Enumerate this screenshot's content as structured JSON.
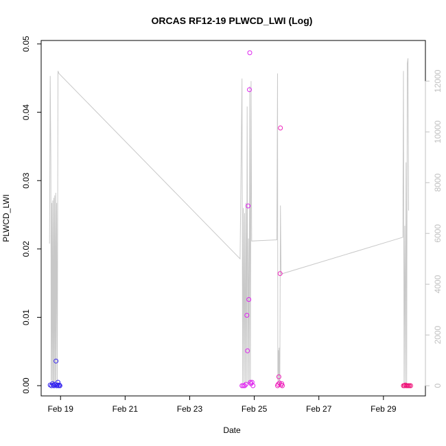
{
  "chart_data": {
    "type": "scatter",
    "title": "ORCAS RF12-19 PLWCD_LWI (Log)",
    "xlabel": "Date",
    "ylabel": "PLWCD_LWI",
    "x_ticks": [
      "Feb 19",
      "Feb 21",
      "Feb 23",
      "Feb 25",
      "Feb 27",
      "Feb 29"
    ],
    "x_tick_days": [
      19,
      21,
      23,
      25,
      27,
      29
    ],
    "xlim": [
      18.4,
      30.3
    ],
    "ylim": [
      -0.0015,
      0.0505
    ],
    "y_ticks": [
      0.0,
      0.01,
      0.02,
      0.03,
      0.04,
      0.05
    ],
    "y_tick_labels": [
      "0.00",
      "0.01",
      "0.02",
      "0.03",
      "0.04",
      "0.05"
    ],
    "y2_ticks": [
      0,
      2000,
      4000,
      6000,
      8000,
      10000,
      12000
    ],
    "y2_tick_labels": [
      "0",
      "2000",
      "4000",
      "6000",
      "8000",
      "10000",
      "12000"
    ],
    "y2lim": [
      -400,
      13600
    ],
    "colors": {
      "line": "#c8c8c8",
      "axis": "#000000",
      "right_axis": "#c0c0c0"
    },
    "series": [
      {
        "color": "#3322ee",
        "points": [
          [
            18.68,
            0.0001
          ],
          [
            18.72,
            0.0
          ],
          [
            18.75,
            0.0003
          ],
          [
            18.78,
            0.0001
          ],
          [
            18.8,
            0.0
          ],
          [
            18.83,
            0.0002
          ],
          [
            18.86,
            0.0036
          ],
          [
            18.88,
            0.0
          ],
          [
            18.9,
            0.0001
          ],
          [
            18.92,
            0.0005
          ],
          [
            18.94,
            0.0
          ],
          [
            18.96,
            0.0001
          ],
          [
            18.98,
            0.0
          ]
        ]
      },
      {
        "color": "#dd22ee",
        "points": [
          [
            24.62,
            0.0
          ],
          [
            24.66,
            0.0
          ],
          [
            24.7,
            0.0
          ],
          [
            24.74,
            0.0002
          ],
          [
            24.77,
            0.0103
          ],
          [
            24.79,
            0.0051
          ],
          [
            24.81,
            0.0263
          ],
          [
            24.83,
            0.0126
          ],
          [
            24.85,
            0.0433
          ],
          [
            24.86,
            0.0487
          ],
          [
            24.88,
            0.0005
          ],
          [
            24.9,
            0.0003
          ],
          [
            24.93,
            0.0005
          ],
          [
            24.96,
            0.0
          ]
        ]
      },
      {
        "color": "#ee22bb",
        "points": [
          [
            25.72,
            0.0
          ],
          [
            25.74,
            0.0002
          ],
          [
            25.76,
            0.0013
          ],
          [
            25.78,
            0.0004
          ],
          [
            25.8,
            0.0164
          ],
          [
            25.81,
            0.0377
          ],
          [
            25.83,
            0.0001
          ],
          [
            25.85,
            0.0003
          ],
          [
            25.87,
            0.0
          ]
        ]
      },
      {
        "color": "#ee1177",
        "points": [
          [
            29.62,
            0.0
          ],
          [
            29.65,
            0.0
          ],
          [
            29.68,
            0.0001
          ],
          [
            29.71,
            0.0
          ],
          [
            29.74,
            0.0
          ],
          [
            29.77,
            0.0
          ],
          [
            29.8,
            0.0
          ],
          [
            29.84,
            0.0
          ]
        ]
      }
    ],
    "right_axis_line": [
      [
        18.66,
        5600
      ],
      [
        18.68,
        12200
      ],
      [
        18.7,
        9000
      ],
      [
        18.71,
        200
      ],
      [
        18.73,
        7200
      ],
      [
        18.74,
        100
      ],
      [
        18.76,
        7300
      ],
      [
        18.77,
        100
      ],
      [
        18.79,
        7400
      ],
      [
        18.8,
        100
      ],
      [
        18.82,
        7500
      ],
      [
        18.83,
        100
      ],
      [
        18.85,
        7600
      ],
      [
        18.86,
        100
      ],
      [
        18.88,
        7200
      ],
      [
        18.9,
        100
      ],
      [
        18.92,
        12400
      ],
      [
        18.95,
        12300
      ],
      [
        24.56,
        5000
      ],
      [
        24.62,
        12100
      ],
      [
        24.64,
        100
      ],
      [
        24.66,
        7000
      ],
      [
        24.68,
        100
      ],
      [
        24.7,
        6800
      ],
      [
        24.72,
        100
      ],
      [
        24.74,
        7200
      ],
      [
        24.76,
        100
      ],
      [
        24.78,
        11000
      ],
      [
        24.8,
        100
      ],
      [
        24.82,
        5800
      ],
      [
        24.84,
        100
      ],
      [
        24.86,
        11800
      ],
      [
        24.88,
        100
      ],
      [
        24.9,
        12000
      ],
      [
        24.92,
        5700
      ],
      [
        25.7,
        5750
      ],
      [
        25.72,
        12300
      ],
      [
        25.73,
        200
      ],
      [
        25.75,
        1400
      ],
      [
        25.76,
        100
      ],
      [
        25.77,
        1500
      ],
      [
        25.79,
        100
      ],
      [
        25.81,
        7100
      ],
      [
        25.83,
        4400
      ],
      [
        29.6,
        5850
      ],
      [
        29.62,
        12400
      ],
      [
        29.64,
        100
      ],
      [
        29.66,
        6300
      ],
      [
        29.68,
        100
      ],
      [
        29.7,
        8800
      ],
      [
        29.72,
        100
      ],
      [
        29.74,
        12700
      ],
      [
        29.76,
        12900
      ],
      [
        29.78,
        6900
      ]
    ]
  }
}
